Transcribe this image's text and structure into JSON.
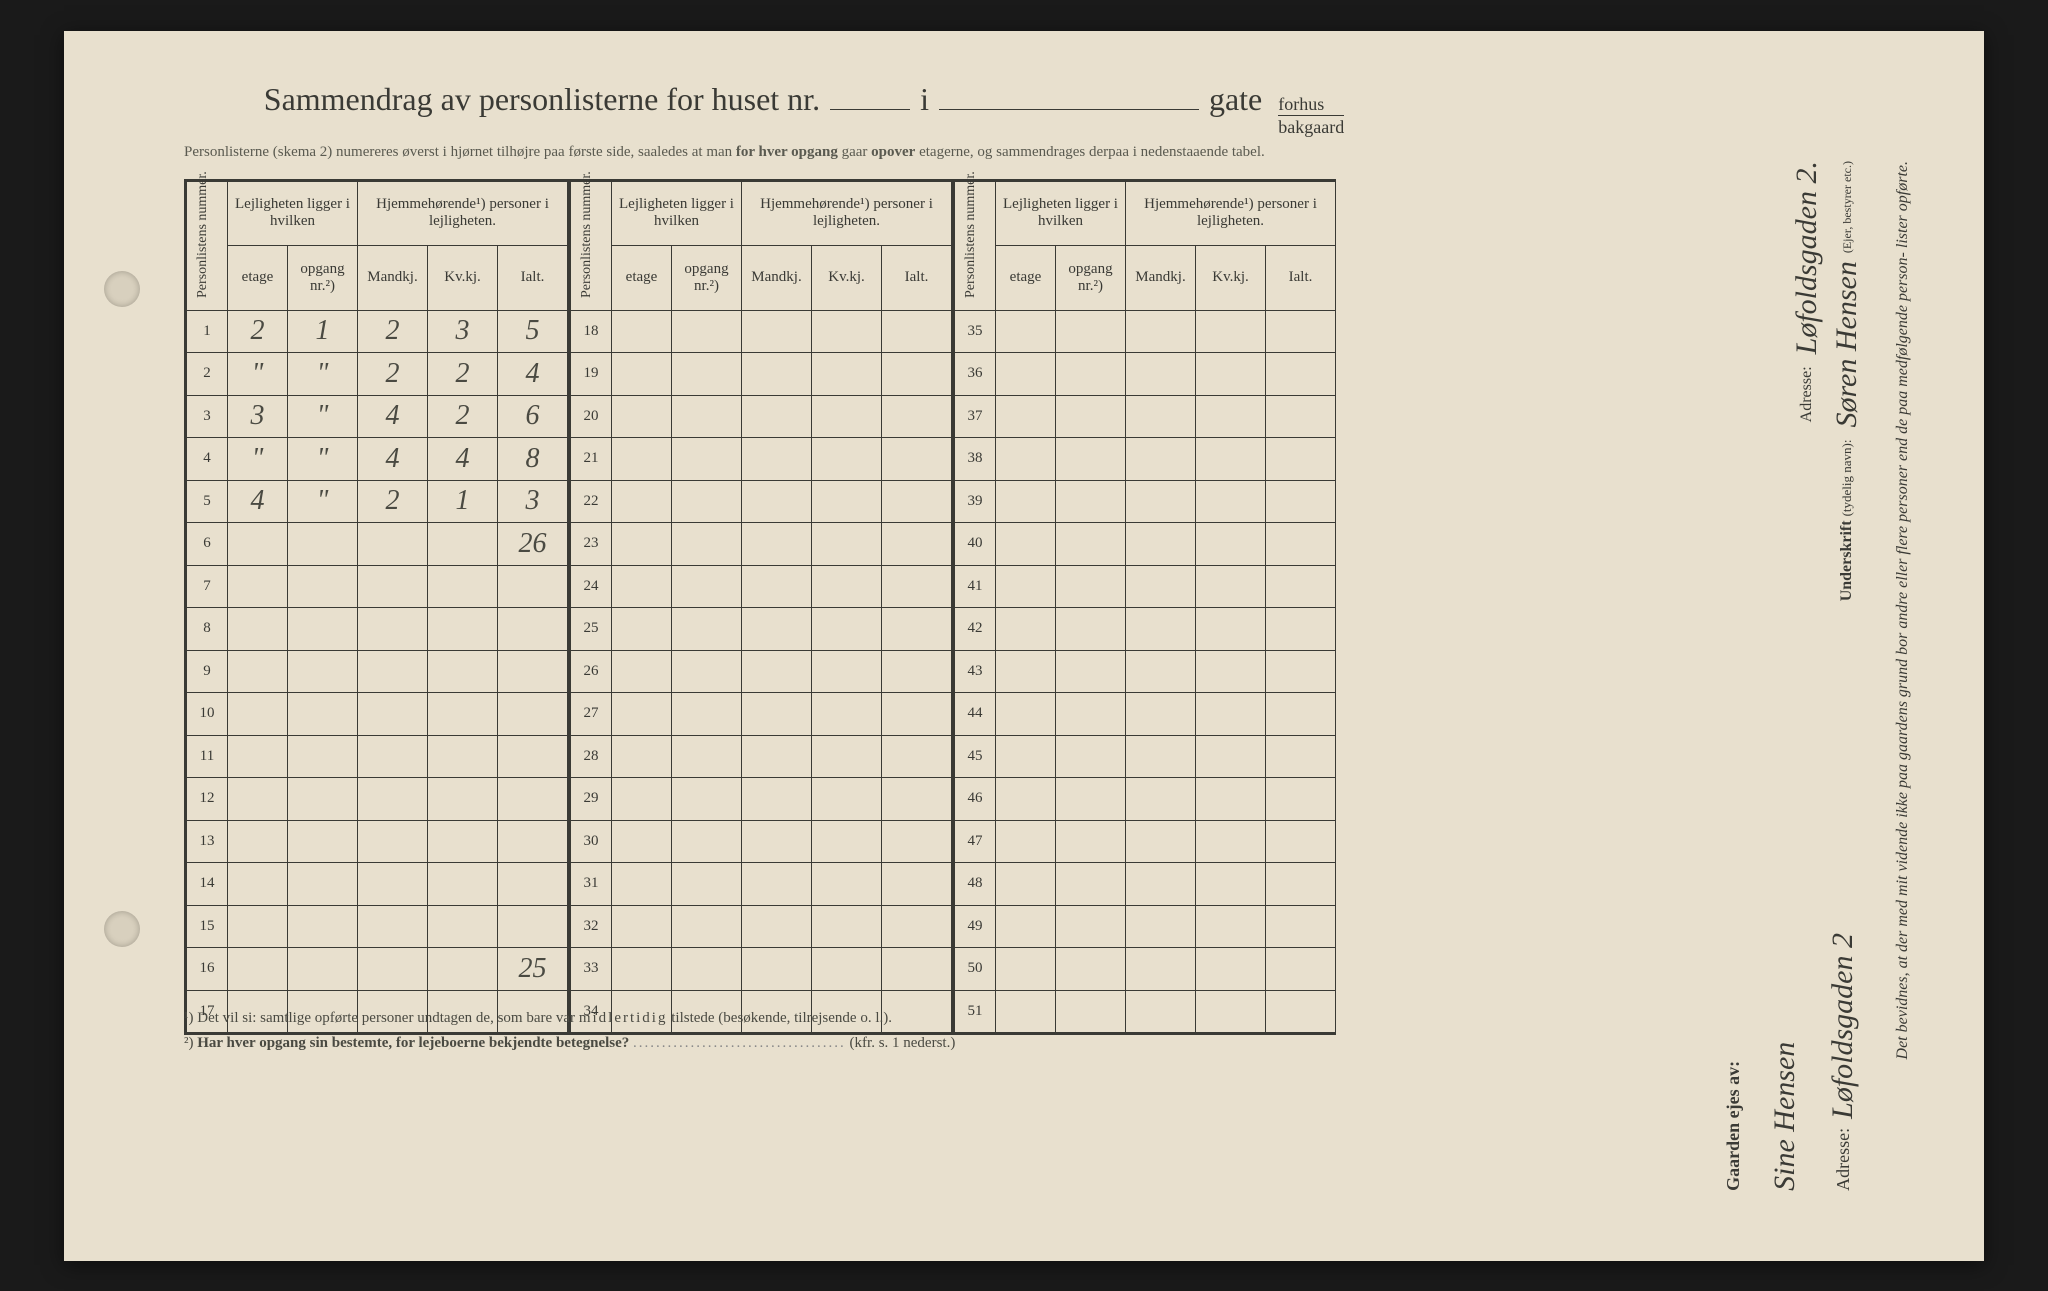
{
  "background_color": "#1a1a1a",
  "paper_color": "#e8e0ce",
  "ink_color": "#3a3a35",
  "handwriting_color": "#4a4a42",
  "title": {
    "text_a": "Sammendrag av personlisterne for huset nr.",
    "text_b": "i",
    "text_c": "gate",
    "fraction_top": "forhus",
    "fraction_bot": "bakgaard"
  },
  "subtitle_a": "Personlisterne (skema 2) numereres øverst i hjørnet tilhøjre paa første side, saaledes at man ",
  "subtitle_b": "for hver opgang",
  "subtitle_c": " gaar ",
  "subtitle_d": "opover",
  "subtitle_e": " etagerne, og sammendrages derpaa i nedenstaaende tabel.",
  "headers": {
    "personlistens": "Personlistens nummer.",
    "lejligheten": "Lejligheten ligger i hvilken",
    "hjemme": "Hjemmehørende¹) personer i lejligheten.",
    "etage": "etage",
    "opgang": "opgang nr.²)",
    "mandkj": "Mandkj.",
    "kvkj": "Kv.kj.",
    "ialt": "Ialt."
  },
  "blocks": [
    {
      "start": 1,
      "rows": [
        {
          "n": "1",
          "etage": "2",
          "opgang": "1",
          "m": "2",
          "k": "3",
          "i": "5"
        },
        {
          "n": "2",
          "etage": "\"",
          "opgang": "\"",
          "m": "2",
          "k": "2",
          "i": "4"
        },
        {
          "n": "3",
          "etage": "3",
          "opgang": "\"",
          "m": "4",
          "k": "2",
          "i": "6"
        },
        {
          "n": "4",
          "etage": "\"",
          "opgang": "\"",
          "m": "4",
          "k": "4",
          "i": "8"
        },
        {
          "n": "5",
          "etage": "4",
          "opgang": "\"",
          "m": "2",
          "k": "1",
          "i": "3"
        },
        {
          "n": "6",
          "etage": "",
          "opgang": "",
          "m": "",
          "k": "",
          "i": "26"
        },
        {
          "n": "7",
          "etage": "",
          "opgang": "",
          "m": "",
          "k": "",
          "i": ""
        },
        {
          "n": "8",
          "etage": "",
          "opgang": "",
          "m": "",
          "k": "",
          "i": ""
        },
        {
          "n": "9",
          "etage": "",
          "opgang": "",
          "m": "",
          "k": "",
          "i": ""
        },
        {
          "n": "10",
          "etage": "",
          "opgang": "",
          "m": "",
          "k": "",
          "i": ""
        },
        {
          "n": "11",
          "etage": "",
          "opgang": "",
          "m": "",
          "k": "",
          "i": ""
        },
        {
          "n": "12",
          "etage": "",
          "opgang": "",
          "m": "",
          "k": "",
          "i": ""
        },
        {
          "n": "13",
          "etage": "",
          "opgang": "",
          "m": "",
          "k": "",
          "i": ""
        },
        {
          "n": "14",
          "etage": "",
          "opgang": "",
          "m": "",
          "k": "",
          "i": ""
        },
        {
          "n": "15",
          "etage": "",
          "opgang": "",
          "m": "",
          "k": "",
          "i": ""
        },
        {
          "n": "16",
          "etage": "",
          "opgang": "",
          "m": "",
          "k": "",
          "i": "25"
        },
        {
          "n": "17",
          "etage": "",
          "opgang": "",
          "m": "",
          "k": "",
          "i": ""
        }
      ]
    },
    {
      "start": 18,
      "rows": [
        {
          "n": "18",
          "etage": "",
          "opgang": "",
          "m": "",
          "k": "",
          "i": ""
        },
        {
          "n": "19",
          "etage": "",
          "opgang": "",
          "m": "",
          "k": "",
          "i": ""
        },
        {
          "n": "20",
          "etage": "",
          "opgang": "",
          "m": "",
          "k": "",
          "i": ""
        },
        {
          "n": "21",
          "etage": "",
          "opgang": "",
          "m": "",
          "k": "",
          "i": ""
        },
        {
          "n": "22",
          "etage": "",
          "opgang": "",
          "m": "",
          "k": "",
          "i": ""
        },
        {
          "n": "23",
          "etage": "",
          "opgang": "",
          "m": "",
          "k": "",
          "i": ""
        },
        {
          "n": "24",
          "etage": "",
          "opgang": "",
          "m": "",
          "k": "",
          "i": ""
        },
        {
          "n": "25",
          "etage": "",
          "opgang": "",
          "m": "",
          "k": "",
          "i": ""
        },
        {
          "n": "26",
          "etage": "",
          "opgang": "",
          "m": "",
          "k": "",
          "i": ""
        },
        {
          "n": "27",
          "etage": "",
          "opgang": "",
          "m": "",
          "k": "",
          "i": ""
        },
        {
          "n": "28",
          "etage": "",
          "opgang": "",
          "m": "",
          "k": "",
          "i": ""
        },
        {
          "n": "29",
          "etage": "",
          "opgang": "",
          "m": "",
          "k": "",
          "i": ""
        },
        {
          "n": "30",
          "etage": "",
          "opgang": "",
          "m": "",
          "k": "",
          "i": ""
        },
        {
          "n": "31",
          "etage": "",
          "opgang": "",
          "m": "",
          "k": "",
          "i": ""
        },
        {
          "n": "32",
          "etage": "",
          "opgang": "",
          "m": "",
          "k": "",
          "i": ""
        },
        {
          "n": "33",
          "etage": "",
          "opgang": "",
          "m": "",
          "k": "",
          "i": ""
        },
        {
          "n": "34",
          "etage": "",
          "opgang": "",
          "m": "",
          "k": "",
          "i": ""
        }
      ]
    },
    {
      "start": 35,
      "rows": [
        {
          "n": "35",
          "etage": "",
          "opgang": "",
          "m": "",
          "k": "",
          "i": ""
        },
        {
          "n": "36",
          "etage": "",
          "opgang": "",
          "m": "",
          "k": "",
          "i": ""
        },
        {
          "n": "37",
          "etage": "",
          "opgang": "",
          "m": "",
          "k": "",
          "i": ""
        },
        {
          "n": "38",
          "etage": "",
          "opgang": "",
          "m": "",
          "k": "",
          "i": ""
        },
        {
          "n": "39",
          "etage": "",
          "opgang": "",
          "m": "",
          "k": "",
          "i": ""
        },
        {
          "n": "40",
          "etage": "",
          "opgang": "",
          "m": "",
          "k": "",
          "i": ""
        },
        {
          "n": "41",
          "etage": "",
          "opgang": "",
          "m": "",
          "k": "",
          "i": ""
        },
        {
          "n": "42",
          "etage": "",
          "opgang": "",
          "m": "",
          "k": "",
          "i": ""
        },
        {
          "n": "43",
          "etage": "",
          "opgang": "",
          "m": "",
          "k": "",
          "i": ""
        },
        {
          "n": "44",
          "etage": "",
          "opgang": "",
          "m": "",
          "k": "",
          "i": ""
        },
        {
          "n": "45",
          "etage": "",
          "opgang": "",
          "m": "",
          "k": "",
          "i": ""
        },
        {
          "n": "46",
          "etage": "",
          "opgang": "",
          "m": "",
          "k": "",
          "i": ""
        },
        {
          "n": "47",
          "etage": "",
          "opgang": "",
          "m": "",
          "k": "",
          "i": ""
        },
        {
          "n": "48",
          "etage": "",
          "opgang": "",
          "m": "",
          "k": "",
          "i": ""
        },
        {
          "n": "49",
          "etage": "",
          "opgang": "",
          "m": "",
          "k": "",
          "i": ""
        },
        {
          "n": "50",
          "etage": "",
          "opgang": "",
          "m": "",
          "k": "",
          "i": ""
        },
        {
          "n": "51",
          "etage": "",
          "opgang": "",
          "m": "",
          "k": "",
          "i": ""
        }
      ]
    }
  ],
  "footnote1_pre": "¹)  Det vil si: samtlige opførte personer undtagen de, som bare var ",
  "footnote1_mid": "midlertidig",
  "footnote1_post": " tilstede (besøkende, tilrejsende o. l.).",
  "footnote2_pre": "²)  ",
  "footnote2_b": "Har hver opgang sin bestemte, for lejeboerne bekjendte betegnelse?",
  "footnote2_dots": ".....................................",
  "footnote2_post": "(kfr. s. 1 nederst.)",
  "vert_attest": "Det bevidnes, at der med mit vidende ikke paa gaardens grund bor andre eller flere personer end de paa medfølgende  person- lister opførte.",
  "vert_under_label": "Underskrift",
  "vert_under_hint": "(tydelig navn):",
  "vert_under_value": "Søren Hensen",
  "vert_role": "(Ejer, bestyrer etc.)",
  "vert_adr_label": "Adresse:",
  "vert_adr_value": "Løfoldsgaden 2.",
  "owner_label": "Gaarden ejes av:",
  "owner_name": "Sine Hensen",
  "owner_adr_label": "Adresse:",
  "owner_adr_value": "Løfoldsgaden 2"
}
